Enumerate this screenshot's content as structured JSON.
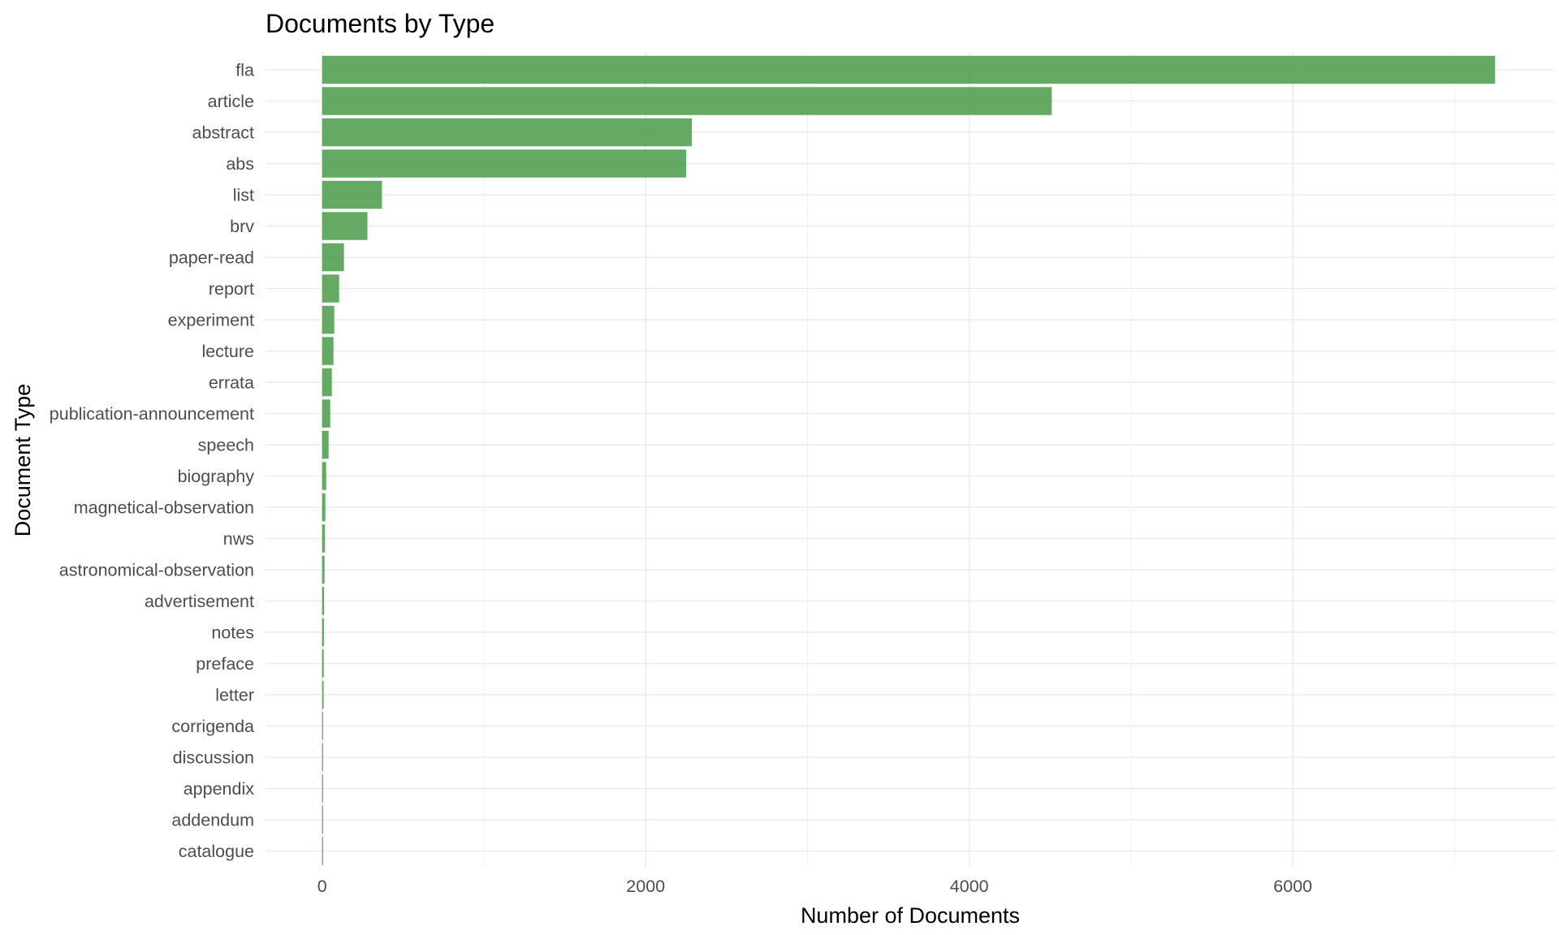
{
  "chart_data": {
    "type": "bar",
    "orientation": "horizontal",
    "title": "Documents by Type",
    "xlabel": "Number of Documents",
    "ylabel": "Document Type",
    "xlim": [
      -350,
      7620
    ],
    "x_ticks": [
      0,
      2000,
      4000,
      6000
    ],
    "x_tick_labels": [
      "0",
      "2000",
      "4000",
      "6000"
    ],
    "grid": true,
    "legend": "none",
    "bar_color": "#4f9e4f",
    "categories": [
      "fla",
      "article",
      "abstract",
      "abs",
      "list",
      "brv",
      "paper-read",
      "report",
      "experiment",
      "lecture",
      "errata",
      "publication-announcement",
      "speech",
      "biography",
      "magnetical-observation",
      "nws",
      "astronomical-observation",
      "advertisement",
      "notes",
      "preface",
      "letter",
      "corrigenda",
      "discussion",
      "appendix",
      "addendum",
      "catalogue"
    ],
    "values": [
      7250,
      4510,
      2285,
      2250,
      370,
      280,
      135,
      105,
      75,
      70,
      60,
      50,
      40,
      25,
      20,
      18,
      15,
      12,
      11,
      10,
      9,
      6,
      5,
      4,
      3,
      2
    ]
  }
}
